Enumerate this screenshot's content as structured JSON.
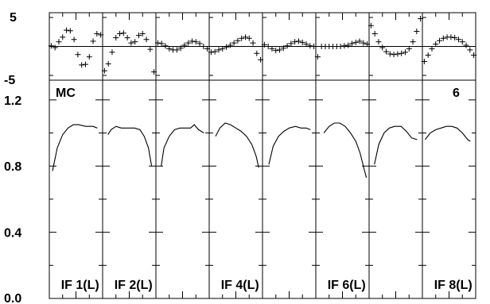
{
  "chart_data": {
    "type": "line",
    "source_label": "MC",
    "panel_count_label": "6",
    "residual_axis": {
      "ylim": [
        -5,
        5
      ],
      "ticks": [
        "5",
        "-5"
      ]
    },
    "main_axis": {
      "ylim": [
        0.0,
        1.3
      ],
      "ticks": [
        "1.2",
        "0.8",
        "0.4",
        "0.0"
      ]
    },
    "panels": [
      {
        "label": "IF 1(L)",
        "residuals": [
          0.1,
          -0.2,
          0.8,
          1.6,
          2.8,
          2.7,
          1.2,
          -1.4,
          -3.2,
          -3.1,
          -1.8,
          0.9,
          2.2,
          2.0
        ],
        "bandpass": [
          [
            0.06,
            0.77
          ],
          [
            0.15,
            0.91
          ],
          [
            0.25,
            0.99
          ],
          [
            0.35,
            1.03
          ],
          [
            0.45,
            1.05
          ],
          [
            0.55,
            1.05
          ],
          [
            0.68,
            1.04
          ],
          [
            0.82,
            1.04
          ],
          [
            0.9,
            1.03
          ]
        ]
      },
      {
        "label": "IF 2(L)",
        "residuals": [
          -4.2,
          -3.0,
          -1.0,
          1.5,
          2.2,
          2.3,
          1.5,
          0.6,
          0.8,
          1.9,
          2.2,
          1.2,
          -0.5,
          -4.4
        ],
        "bandpass": [
          [
            0.1,
            0.99
          ],
          [
            0.16,
            1.02
          ],
          [
            0.25,
            1.04
          ],
          [
            0.35,
            1.03
          ],
          [
            0.48,
            1.03
          ],
          [
            0.6,
            1.03
          ],
          [
            0.7,
            1.02
          ],
          [
            0.78,
            0.98
          ],
          [
            0.86,
            0.91
          ],
          [
            0.92,
            0.8
          ]
        ]
      },
      {
        "label": "",
        "residuals": [
          0.6,
          0.5,
          0.1,
          -0.4,
          -0.6,
          -0.6,
          -0.3,
          0.2,
          0.6,
          0.9,
          0.8,
          0.5,
          0.0,
          -0.4
        ],
        "bandpass": [
          [
            0.1,
            0.8
          ],
          [
            0.15,
            0.91
          ],
          [
            0.25,
            0.98
          ],
          [
            0.35,
            1.02
          ],
          [
            0.45,
            1.03
          ],
          [
            0.55,
            1.03
          ],
          [
            0.65,
            1.03
          ],
          [
            0.72,
            1.05
          ],
          [
            0.8,
            1.02
          ],
          [
            0.9,
            1.0
          ]
        ]
      },
      {
        "label": "IF 4(L)",
        "residuals": [
          -1.0,
          -0.9,
          -0.6,
          -0.4,
          -0.1,
          0.2,
          0.6,
          1.0,
          1.4,
          1.6,
          1.4,
          0.6,
          -1.2,
          -2.3
        ],
        "bandpass": [
          [
            0.12,
            0.98
          ],
          [
            0.2,
            1.03
          ],
          [
            0.3,
            1.06
          ],
          [
            0.4,
            1.05
          ],
          [
            0.5,
            1.03
          ],
          [
            0.6,
            1.01
          ],
          [
            0.7,
            0.98
          ],
          [
            0.8,
            0.93
          ],
          [
            0.88,
            0.86
          ],
          [
            0.93,
            0.79
          ]
        ]
      },
      {
        "label": "",
        "residuals": [
          0.3,
          0.0,
          -0.4,
          -0.7,
          -0.6,
          -0.3,
          0.1,
          0.5,
          0.8,
          0.9,
          0.7,
          0.4,
          0.1,
          0.0
        ],
        "bandpass": [
          [
            0.12,
            0.81
          ],
          [
            0.2,
            0.92
          ],
          [
            0.3,
            0.98
          ],
          [
            0.4,
            1.01
          ],
          [
            0.5,
            1.03
          ],
          [
            0.62,
            1.04
          ],
          [
            0.72,
            1.03
          ],
          [
            0.82,
            1.03
          ],
          [
            0.9,
            1.02
          ]
        ]
      },
      {
        "label": "IF 6(L)",
        "residuals": [
          -1.8,
          0.0,
          0.0,
          0.0,
          0.0,
          0.0,
          0.0,
          0.1,
          0.2,
          0.5,
          0.7,
          0.9,
          0.6,
          0.4
        ],
        "bandpass": [
          [
            0.15,
            1.0
          ],
          [
            0.25,
            1.04
          ],
          [
            0.35,
            1.06
          ],
          [
            0.45,
            1.06
          ],
          [
            0.55,
            1.04
          ],
          [
            0.65,
            1.0
          ],
          [
            0.75,
            0.95
          ],
          [
            0.83,
            0.88
          ],
          [
            0.9,
            0.79
          ],
          [
            0.95,
            0.73
          ]
        ]
      },
      {
        "label": "",
        "residuals": [
          3.6,
          2.2,
          0.8,
          -0.2,
          -0.9,
          -1.3,
          -1.4,
          -1.3,
          -1.2,
          -1.0,
          -0.4,
          0.8,
          2.6,
          4.8
        ],
        "bandpass": [
          [
            0.1,
            0.81
          ],
          [
            0.18,
            0.93
          ],
          [
            0.28,
            1.0
          ],
          [
            0.38,
            1.03
          ],
          [
            0.48,
            1.04
          ],
          [
            0.6,
            1.04
          ],
          [
            0.7,
            1.01
          ],
          [
            0.8,
            0.97
          ],
          [
            0.9,
            0.96
          ]
        ]
      },
      {
        "label": "IF 8(L)",
        "residuals": [
          -2.6,
          -1.5,
          -0.4,
          0.4,
          1.0,
          1.4,
          1.6,
          1.6,
          1.5,
          1.2,
          0.8,
          0.2,
          -0.6,
          -1.5
        ],
        "bandpass": [
          [
            0.05,
            0.96
          ],
          [
            0.15,
            1.0
          ],
          [
            0.25,
            1.02
          ],
          [
            0.35,
            1.03
          ],
          [
            0.45,
            1.04
          ],
          [
            0.55,
            1.04
          ],
          [
            0.65,
            1.03
          ],
          [
            0.75,
            1.0
          ],
          [
            0.85,
            0.96
          ],
          [
            0.9,
            0.95
          ]
        ]
      }
    ]
  }
}
